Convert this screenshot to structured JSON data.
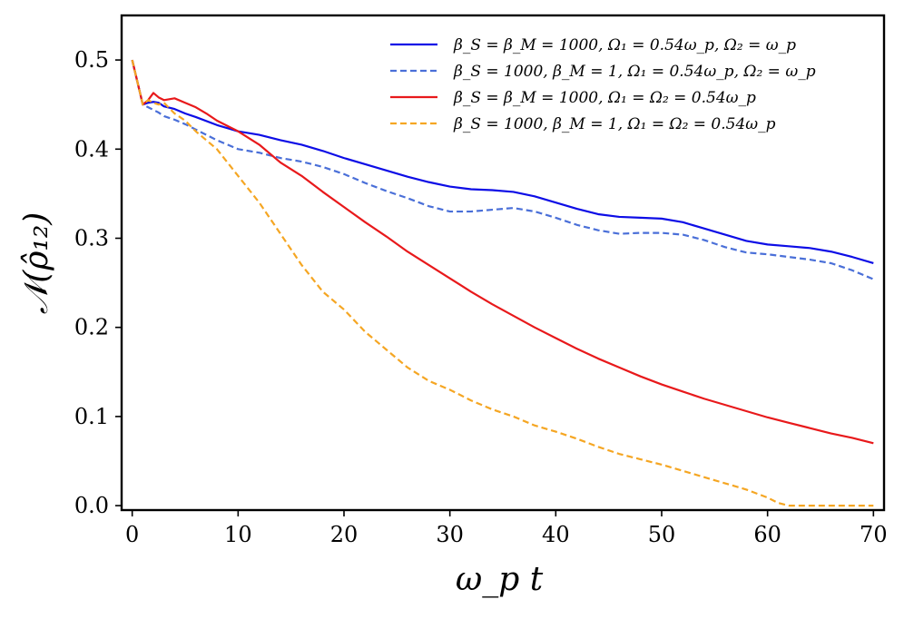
{
  "chart_data": {
    "type": "line",
    "title": "",
    "xlabel": "ω_p t",
    "ylabel": "𝒩(ρ̂₁₂)",
    "xlim": [
      -1,
      71
    ],
    "ylim": [
      -0.005,
      0.55
    ],
    "xticks": [
      0,
      10,
      20,
      30,
      40,
      50,
      60,
      70
    ],
    "xtick_labels": [
      "0",
      "10",
      "20",
      "30",
      "40",
      "50",
      "60",
      "70"
    ],
    "yticks": [
      0.0,
      0.1,
      0.2,
      0.3,
      0.4,
      0.5
    ],
    "ytick_labels": [
      "0.0",
      "0.1",
      "0.2",
      "0.3",
      "0.4",
      "0.5"
    ],
    "grid": false,
    "legend_position": "top-right",
    "series": [
      {
        "name": "β_S = β_M = 1000, Ω₁ = 0.54ω_p, Ω₂ = ω_p",
        "color": "#0d0de6",
        "dash": "solid",
        "x": [
          0,
          0.5,
          1,
          1.5,
          2,
          2.5,
          3,
          4,
          5,
          6,
          8,
          10,
          12,
          14,
          16,
          18,
          20,
          22,
          24,
          26,
          28,
          30,
          32,
          34,
          36,
          38,
          40,
          42,
          44,
          46,
          48,
          50,
          52,
          54,
          56,
          58,
          60,
          62,
          64,
          66,
          68,
          70
        ],
        "y": [
          0.5,
          0.475,
          0.45,
          0.452,
          0.453,
          0.452,
          0.448,
          0.445,
          0.44,
          0.436,
          0.427,
          0.42,
          0.416,
          0.41,
          0.405,
          0.398,
          0.39,
          0.383,
          0.376,
          0.369,
          0.363,
          0.358,
          0.355,
          0.354,
          0.352,
          0.347,
          0.34,
          0.333,
          0.327,
          0.324,
          0.323,
          0.322,
          0.318,
          0.311,
          0.304,
          0.297,
          0.293,
          0.291,
          0.289,
          0.285,
          0.279,
          0.272
        ]
      },
      {
        "name": "β_S = 1000, β_M = 1, Ω₁ = 0.54ω_p, Ω₂ = ω_p",
        "color": "#4a6fd8",
        "dash": "dashed",
        "x": [
          0,
          0.5,
          1,
          1.5,
          2,
          2.5,
          3,
          4,
          5,
          6,
          8,
          10,
          12,
          14,
          16,
          18,
          20,
          22,
          24,
          26,
          28,
          30,
          32,
          34,
          36,
          38,
          40,
          42,
          44,
          46,
          48,
          50,
          52,
          54,
          56,
          58,
          60,
          62,
          64,
          66,
          68,
          70
        ],
        "y": [
          0.5,
          0.475,
          0.45,
          0.447,
          0.444,
          0.441,
          0.437,
          0.433,
          0.428,
          0.422,
          0.41,
          0.4,
          0.396,
          0.39,
          0.386,
          0.38,
          0.372,
          0.362,
          0.353,
          0.345,
          0.336,
          0.33,
          0.33,
          0.332,
          0.334,
          0.33,
          0.323,
          0.315,
          0.309,
          0.305,
          0.306,
          0.306,
          0.304,
          0.298,
          0.29,
          0.284,
          0.282,
          0.279,
          0.276,
          0.272,
          0.264,
          0.254
        ]
      },
      {
        "name": "β_S = β_M = 1000, Ω₁ = Ω₂ = 0.54ω_p",
        "color": "#e8191b",
        "dash": "solid",
        "x": [
          0,
          0.5,
          1,
          1.5,
          2,
          2.5,
          3,
          4,
          5,
          6,
          7,
          8,
          10,
          12,
          14,
          16,
          18,
          20,
          22,
          24,
          26,
          28,
          30,
          32,
          34,
          36,
          38,
          40,
          42,
          44,
          46,
          48,
          50,
          52,
          54,
          56,
          58,
          60,
          62,
          64,
          66,
          68,
          70
        ],
        "y": [
          0.5,
          0.475,
          0.45,
          0.455,
          0.463,
          0.458,
          0.455,
          0.457,
          0.452,
          0.447,
          0.44,
          0.432,
          0.42,
          0.405,
          0.385,
          0.37,
          0.352,
          0.335,
          0.318,
          0.302,
          0.285,
          0.27,
          0.255,
          0.24,
          0.226,
          0.213,
          0.2,
          0.188,
          0.176,
          0.165,
          0.155,
          0.145,
          0.136,
          0.128,
          0.12,
          0.113,
          0.106,
          0.099,
          0.093,
          0.087,
          0.081,
          0.076,
          0.07
        ]
      },
      {
        "name": "β_S = 1000, β_M = 1, Ω₁ = Ω₂ = 0.54ω_p",
        "color": "#f5a623",
        "dash": "dashed",
        "x": [
          0,
          0.5,
          1,
          1.5,
          2,
          2.5,
          3,
          4,
          5,
          6,
          8,
          10,
          12,
          14,
          16,
          18,
          20,
          22,
          24,
          26,
          28,
          30,
          32,
          34,
          36,
          38,
          40,
          42,
          44,
          46,
          48,
          50,
          52,
          54,
          56,
          58,
          60,
          61,
          62,
          64,
          66,
          68,
          70
        ],
        "y": [
          0.5,
          0.475,
          0.45,
          0.455,
          0.452,
          0.45,
          0.452,
          0.44,
          0.432,
          0.42,
          0.4,
          0.37,
          0.34,
          0.305,
          0.27,
          0.24,
          0.22,
          0.195,
          0.175,
          0.155,
          0.14,
          0.13,
          0.118,
          0.108,
          0.1,
          0.09,
          0.083,
          0.075,
          0.066,
          0.058,
          0.052,
          0.046,
          0.039,
          0.032,
          0.025,
          0.018,
          0.009,
          0.003,
          0.0,
          0.0,
          0.0,
          0.0,
          0.0
        ]
      }
    ],
    "legend": [
      "β_S = β_M = 1000, Ω₁ = 0.54ω_p, Ω₂ = ω_p",
      "β_S = 1000, β_M = 1, Ω₁ = 0.54ω_p, Ω₂ = ω_p",
      "β_S = β_M = 1000, Ω₁ = Ω₂ = 0.54ω_p",
      "β_S = 1000, β_M = 1, Ω₁ = Ω₂ = 0.54ω_p"
    ]
  }
}
